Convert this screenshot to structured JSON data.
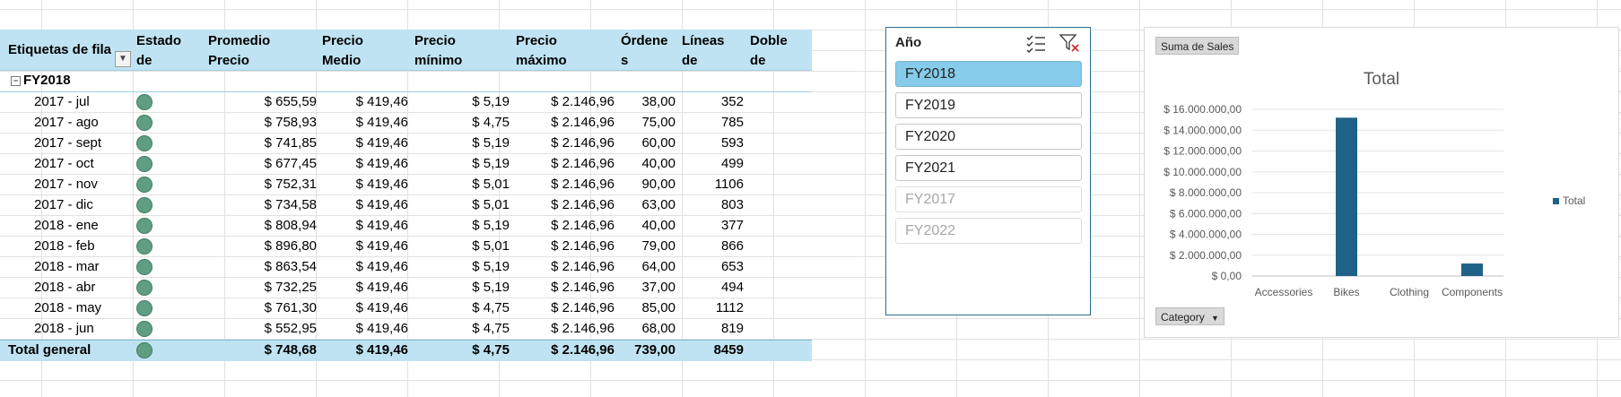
{
  "pivot": {
    "headers": {
      "row_labels": "Etiquetas de fila",
      "estado": "Estado\nde",
      "promedio_precio": "Promedio\nPrecio",
      "precio_medio": "Precio\nMedio",
      "precio_minimo": "Precio\nmínimo",
      "precio_maximo": "Precio\nmáximo",
      "ordenes": "Órdene\ns",
      "lineas": "Líneas\nde",
      "doble": "Doble\nde"
    },
    "group": "FY2018",
    "rows": [
      {
        "label": "2017 - jul",
        "promedio": "$ 655,59",
        "medio": "$ 419,46",
        "minimo": "$ 5,19",
        "maximo": "$ 2.146,96",
        "ordenes": "38,00",
        "lineas": "352"
      },
      {
        "label": "2017 - ago",
        "promedio": "$ 758,93",
        "medio": "$ 419,46",
        "minimo": "$ 4,75",
        "maximo": "$ 2.146,96",
        "ordenes": "75,00",
        "lineas": "785"
      },
      {
        "label": "2017 - sept",
        "promedio": "$ 741,85",
        "medio": "$ 419,46",
        "minimo": "$ 5,19",
        "maximo": "$ 2.146,96",
        "ordenes": "60,00",
        "lineas": "593"
      },
      {
        "label": "2017 - oct",
        "promedio": "$ 677,45",
        "medio": "$ 419,46",
        "minimo": "$ 5,19",
        "maximo": "$ 2.146,96",
        "ordenes": "40,00",
        "lineas": "499"
      },
      {
        "label": "2017 - nov",
        "promedio": "$ 752,31",
        "medio": "$ 419,46",
        "minimo": "$ 5,01",
        "maximo": "$ 2.146,96",
        "ordenes": "90,00",
        "lineas": "1106"
      },
      {
        "label": "2017 - dic",
        "promedio": "$ 734,58",
        "medio": "$ 419,46",
        "minimo": "$ 5,01",
        "maximo": "$ 2.146,96",
        "ordenes": "63,00",
        "lineas": "803"
      },
      {
        "label": "2018 - ene",
        "promedio": "$ 808,94",
        "medio": "$ 419,46",
        "minimo": "$ 5,19",
        "maximo": "$ 2.146,96",
        "ordenes": "40,00",
        "lineas": "377"
      },
      {
        "label": "2018 - feb",
        "promedio": "$ 896,80",
        "medio": "$ 419,46",
        "minimo": "$ 5,01",
        "maximo": "$ 2.146,96",
        "ordenes": "79,00",
        "lineas": "866"
      },
      {
        "label": "2018 - mar",
        "promedio": "$ 863,54",
        "medio": "$ 419,46",
        "minimo": "$ 5,19",
        "maximo": "$ 2.146,96",
        "ordenes": "64,00",
        "lineas": "653"
      },
      {
        "label": "2018 - abr",
        "promedio": "$ 732,25",
        "medio": "$ 419,46",
        "minimo": "$ 5,19",
        "maximo": "$ 2.146,96",
        "ordenes": "37,00",
        "lineas": "494"
      },
      {
        "label": "2018 - may",
        "promedio": "$ 761,30",
        "medio": "$ 419,46",
        "minimo": "$ 4,75",
        "maximo": "$ 2.146,96",
        "ordenes": "85,00",
        "lineas": "1112"
      },
      {
        "label": "2018 - jun",
        "promedio": "$ 552,95",
        "medio": "$ 419,46",
        "minimo": "$ 4,75",
        "maximo": "$ 2.146,96",
        "ordenes": "68,00",
        "lineas": "819"
      }
    ],
    "total": {
      "label": "Total general",
      "promedio": "$ 748,68",
      "medio": "$ 419,46",
      "minimo": "$ 4,75",
      "maximo": "$ 2.146,96",
      "ordenes": "739,00",
      "lineas": "8459"
    },
    "status_color": "#5f9e82"
  },
  "slicer": {
    "title": "Año",
    "items": [
      {
        "label": "FY2018",
        "state": "selected"
      },
      {
        "label": "FY2019",
        "state": "normal"
      },
      {
        "label": "FY2020",
        "state": "normal"
      },
      {
        "label": "FY2021",
        "state": "normal"
      },
      {
        "label": "FY2017",
        "state": "nodata"
      },
      {
        "label": "FY2022",
        "state": "nodata"
      }
    ],
    "icons": [
      "multi-select-icon",
      "clear-filter-icon"
    ]
  },
  "chart": {
    "value_field_button": "Suma de Sales",
    "axis_field_button": "Category",
    "bar_color": "#1f6287"
  },
  "chart_data": {
    "type": "bar",
    "title": "Total",
    "categories": [
      "Accessories",
      "Bikes",
      "Clothing",
      "Components"
    ],
    "series": [
      {
        "name": "Total",
        "values": [
          0,
          15200000,
          0,
          1200000
        ]
      }
    ],
    "ylim": [
      0,
      16000000
    ],
    "yticks": [
      "$ 0,00",
      "$ 2.000.000,00",
      "$ 4.000.000,00",
      "$ 6.000.000,00",
      "$ 8.000.000,00",
      "$ 10.000.000,00",
      "$ 12.000.000,00",
      "$ 14.000.000,00",
      "$ 16.000.000,00"
    ],
    "ytick_values": [
      0,
      2000000,
      4000000,
      6000000,
      8000000,
      10000000,
      12000000,
      14000000,
      16000000
    ],
    "legend": "right",
    "grid": true
  }
}
